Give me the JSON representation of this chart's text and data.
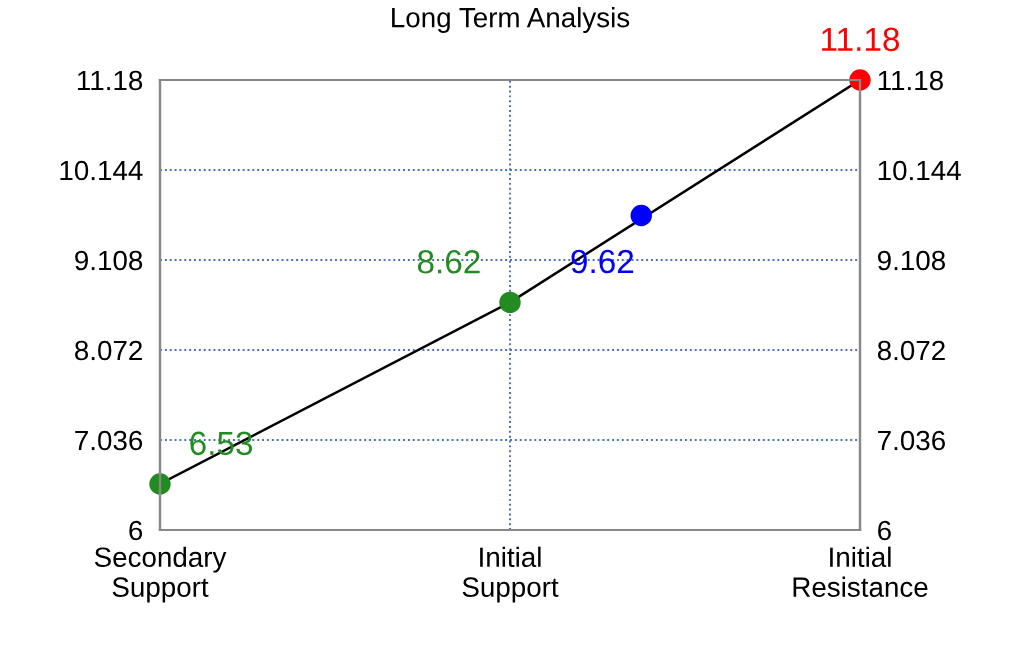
{
  "chart_data": {
    "type": "line",
    "title": "Long Term Analysis",
    "categories": [
      "Secondary\nSupport",
      null,
      null,
      null,
      null,
      null,
      null,
      null,
      "Initial\nSupport",
      null,
      null,
      null,
      null,
      null,
      null,
      null,
      "Initial\nResistance"
    ],
    "ylim": [
      6,
      11.18
    ],
    "yticks": [
      6,
      7.036,
      8.072,
      9.108,
      10.144,
      11.18
    ],
    "y2lim": [
      6,
      11.18
    ],
    "y2ticks": [
      6,
      7.036,
      8.072,
      9.108,
      10.144,
      11.18
    ],
    "grid": true,
    "marker": "circle",
    "series": [
      {
        "color": "#000000",
        "values": [
          6.53,
          null,
          null,
          null,
          null,
          null,
          null,
          null,
          8.62,
          null,
          null,
          null,
          null,
          null,
          null,
          null,
          11.18
        ],
        "colors": [
          "#228b22",
          null,
          null,
          null,
          null,
          null,
          null,
          null,
          "#228b22",
          null,
          null,
          null,
          null,
          null,
          null,
          null,
          "#ff0000"
        ],
        "value_labels": [
          "6.53",
          null,
          null,
          null,
          null,
          null,
          null,
          null,
          "8.62",
          null,
          null,
          null,
          null,
          null,
          null,
          null,
          "11.18"
        ]
      },
      {
        "type": "scatter",
        "color": "#0000ff",
        "values": [
          null,
          null,
          null,
          null,
          null,
          null,
          null,
          null,
          null,
          null,
          null,
          9.62,
          null,
          null,
          null,
          null,
          null
        ],
        "value_labels": [
          null,
          null,
          null,
          null,
          null,
          null,
          null,
          null,
          null,
          null,
          null,
          "9.62",
          null,
          null,
          null,
          null,
          null
        ]
      }
    ]
  }
}
